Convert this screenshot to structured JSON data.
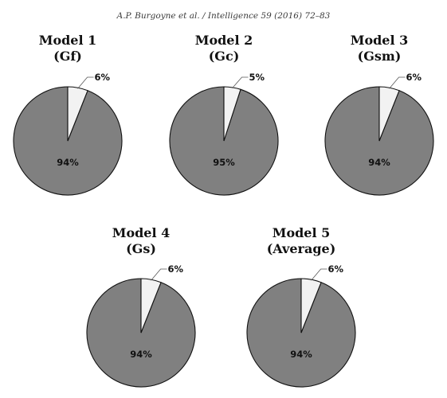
{
  "header": {
    "running_head": "A.P. Burgoyne et al. / Intelligence 59 (2016) 72–83"
  },
  "colors": {
    "main_slice": "#808080",
    "small_slice": "#f2f2f2",
    "outline": "#111111"
  },
  "chart_data": [
    {
      "type": "pie",
      "title": "Model 1",
      "subtitle": "(Gf)",
      "categories": [
        "",
        ""
      ],
      "values": [
        6,
        94
      ],
      "labels": [
        "6%",
        "94%"
      ]
    },
    {
      "type": "pie",
      "title": "Model 2",
      "subtitle": "(Gc)",
      "categories": [
        "",
        ""
      ],
      "values": [
        5,
        95
      ],
      "labels": [
        "5%",
        "95%"
      ]
    },
    {
      "type": "pie",
      "title": "Model 3",
      "subtitle": "(Gsm)",
      "categories": [
        "",
        ""
      ],
      "values": [
        6,
        94
      ],
      "labels": [
        "6%",
        "94%"
      ]
    },
    {
      "type": "pie",
      "title": "Model 4",
      "subtitle": "(Gs)",
      "categories": [
        "",
        ""
      ],
      "values": [
        6,
        94
      ],
      "labels": [
        "6%",
        "94%"
      ]
    },
    {
      "type": "pie",
      "title": "Model 5",
      "subtitle": "(Average)",
      "categories": [
        "",
        ""
      ],
      "values": [
        6,
        94
      ],
      "labels": [
        "6%",
        "94%"
      ]
    }
  ]
}
